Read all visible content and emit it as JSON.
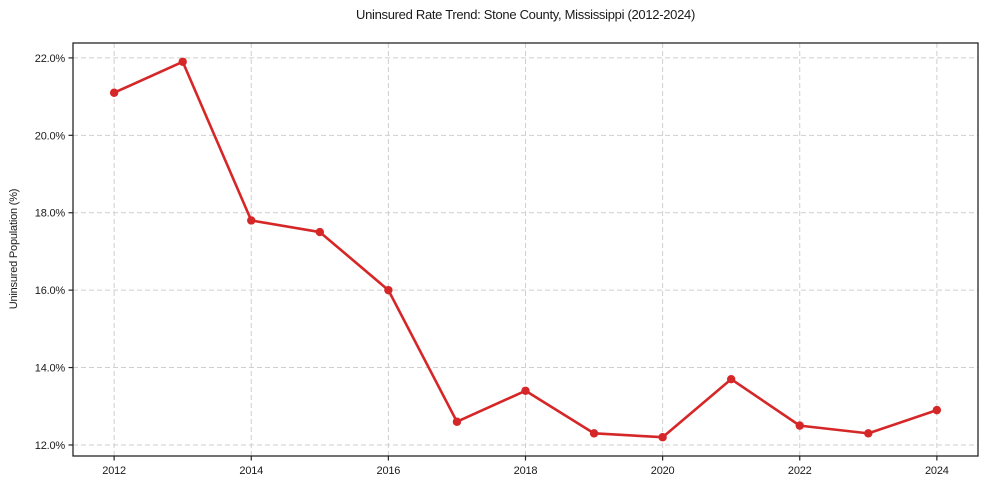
{
  "chart_data": {
    "type": "line",
    "title": "Uninsured Rate Trend: Stone County, Mississippi (2012-2024)",
    "xlabel": "",
    "ylabel": "Uninsured Population (%)",
    "x": [
      2012,
      2013,
      2014,
      2015,
      2016,
      2017,
      2018,
      2019,
      2020,
      2021,
      2022,
      2023,
      2024
    ],
    "values": [
      21.1,
      21.9,
      17.8,
      17.5,
      16.0,
      12.6,
      13.4,
      12.3,
      12.2,
      13.7,
      12.5,
      12.3,
      12.9
    ],
    "xticks": [
      2012,
      2014,
      2016,
      2018,
      2020,
      2022,
      2024
    ],
    "xtick_labels": [
      "2012",
      "2014",
      "2016",
      "2018",
      "2020",
      "2022",
      "2024"
    ],
    "yticks": [
      12,
      14,
      16,
      18,
      20,
      22
    ],
    "ytick_labels": [
      "12.0%",
      "14.0%",
      "16.0%",
      "18.0%",
      "20.0%",
      "22.0%"
    ],
    "xlim": [
      2011.4,
      2024.6
    ],
    "ylim": [
      11.715,
      22.385
    ],
    "grid": true,
    "grid_style": "dashed",
    "legend": false,
    "line_color": "#d62728",
    "marker": "circle",
    "marker_color": "#d62728",
    "grid_color": "#cfcfcf",
    "spine_color": "#262626",
    "background_color": "#ffffff"
  }
}
